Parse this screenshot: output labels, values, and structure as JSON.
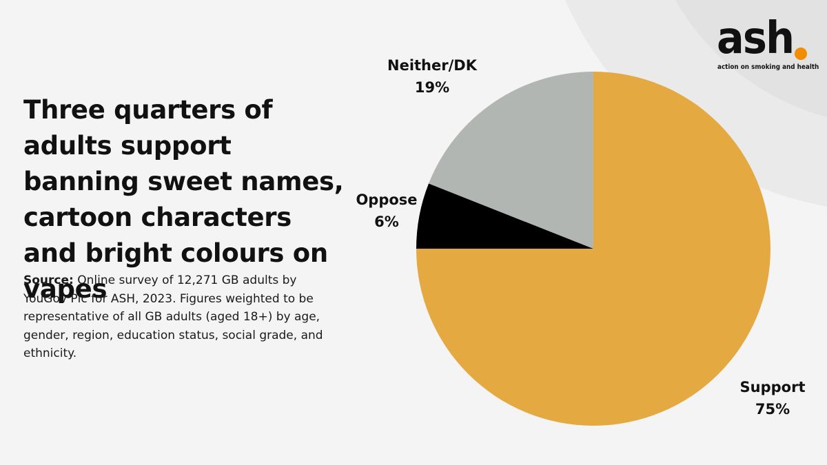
{
  "headline": "Three quarters of adults support banning sweet names, cartoon characters and bright colours on vapes",
  "source": {
    "label": "Source:",
    "text": "Online survey of 12,271 GB adults by YouGov Plc for ASH, 2023. Figures weighted to be representative of all GB adults (aged 18+) by age, gender, region, education status, social grade, and ethnicity."
  },
  "logo": {
    "word": "ash",
    "tagline": "action on smoking and health",
    "dot_color": "#f28c00"
  },
  "colors": {
    "background": "#f4f4f4",
    "support": "#e5a942",
    "oppose": "#000000",
    "neither": "#b2b6b3"
  },
  "chart_data": {
    "type": "pie",
    "title": "",
    "slices": [
      {
        "name": "Support",
        "label": "Support",
        "value": 75,
        "value_label": "75%",
        "color": "#e5a942"
      },
      {
        "name": "Oppose",
        "label": "Oppose",
        "value": 6,
        "value_label": "6%",
        "color": "#000000"
      },
      {
        "name": "Neither/DK",
        "label": "Neither/DK",
        "value": 19,
        "value_label": "19%",
        "color": "#b2b6b3"
      }
    ]
  }
}
